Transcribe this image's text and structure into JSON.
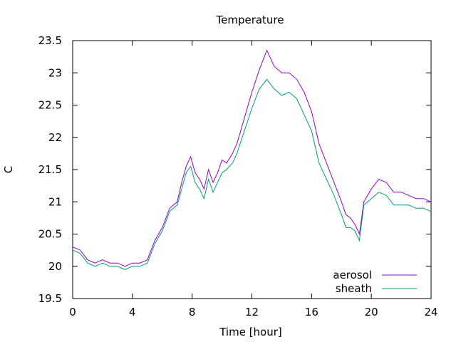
{
  "chart_data": {
    "type": "line",
    "title": "Temperature",
    "xlabel": "Time [hour]",
    "ylabel": "C",
    "xlim": [
      0,
      24
    ],
    "ylim": [
      19.5,
      23.5
    ],
    "xticks": [
      0,
      4,
      8,
      12,
      16,
      20,
      24
    ],
    "yticks": [
      19.5,
      20,
      20.5,
      21,
      21.5,
      22,
      22.5,
      23,
      23.5
    ],
    "grid": false,
    "legend": "bottom-right",
    "series": [
      {
        "name": "aerosol",
        "color": "#9400d3",
        "x": [
          0,
          0.5,
          1,
          1.5,
          2,
          2.5,
          3,
          3.5,
          4,
          4.5,
          5,
          5.5,
          6,
          6.5,
          7,
          7.3,
          7.6,
          7.9,
          8.2,
          8.5,
          8.8,
          9.1,
          9.4,
          9.7,
          10,
          10.3,
          10.7,
          11,
          11.5,
          12,
          12.5,
          13,
          13.5,
          14,
          14.5,
          15,
          15.5,
          16,
          16.5,
          17,
          17.5,
          18,
          18.3,
          18.6,
          18.9,
          19.2,
          19.5,
          20,
          20.5,
          21,
          21.5,
          22,
          22.5,
          23,
          23.5,
          24
        ],
        "y": [
          20.3,
          20.25,
          20.1,
          20.05,
          20.1,
          20.05,
          20.05,
          20.0,
          20.05,
          20.05,
          20.1,
          20.4,
          20.6,
          20.9,
          21.0,
          21.3,
          21.55,
          21.7,
          21.45,
          21.35,
          21.2,
          21.5,
          21.3,
          21.45,
          21.65,
          21.6,
          21.75,
          21.9,
          22.3,
          22.7,
          23.05,
          23.35,
          23.1,
          23.0,
          23.0,
          22.9,
          22.7,
          22.4,
          21.9,
          21.6,
          21.3,
          21.0,
          20.8,
          20.75,
          20.65,
          20.5,
          21.0,
          21.2,
          21.35,
          21.3,
          21.15,
          21.15,
          21.1,
          21.05,
          21.05,
          21.0
        ]
      },
      {
        "name": "sheath",
        "color": "#009e73",
        "x": [
          0,
          0.5,
          1,
          1.5,
          2,
          2.5,
          3,
          3.5,
          4,
          4.5,
          5,
          5.5,
          6,
          6.5,
          7,
          7.3,
          7.6,
          7.9,
          8.2,
          8.5,
          8.8,
          9.1,
          9.4,
          9.7,
          10,
          10.3,
          10.7,
          11,
          11.5,
          12,
          12.5,
          13,
          13.5,
          14,
          14.5,
          15,
          15.5,
          16,
          16.5,
          17,
          17.5,
          18,
          18.3,
          18.6,
          18.9,
          19.2,
          19.5,
          20,
          20.5,
          21,
          21.5,
          22,
          22.5,
          23,
          23.5,
          24
        ],
        "y": [
          20.25,
          20.2,
          20.05,
          20.0,
          20.05,
          20.0,
          20.0,
          19.95,
          20.0,
          20.0,
          20.05,
          20.35,
          20.55,
          20.85,
          20.95,
          21.2,
          21.45,
          21.55,
          21.3,
          21.2,
          21.05,
          21.35,
          21.15,
          21.3,
          21.45,
          21.5,
          21.6,
          21.75,
          22.1,
          22.45,
          22.75,
          22.9,
          22.75,
          22.65,
          22.7,
          22.6,
          22.35,
          22.1,
          21.6,
          21.35,
          21.1,
          20.8,
          20.6,
          20.6,
          20.55,
          20.4,
          20.95,
          21.05,
          21.15,
          21.1,
          20.95,
          20.95,
          20.95,
          20.9,
          20.9,
          20.85
        ]
      }
    ]
  }
}
